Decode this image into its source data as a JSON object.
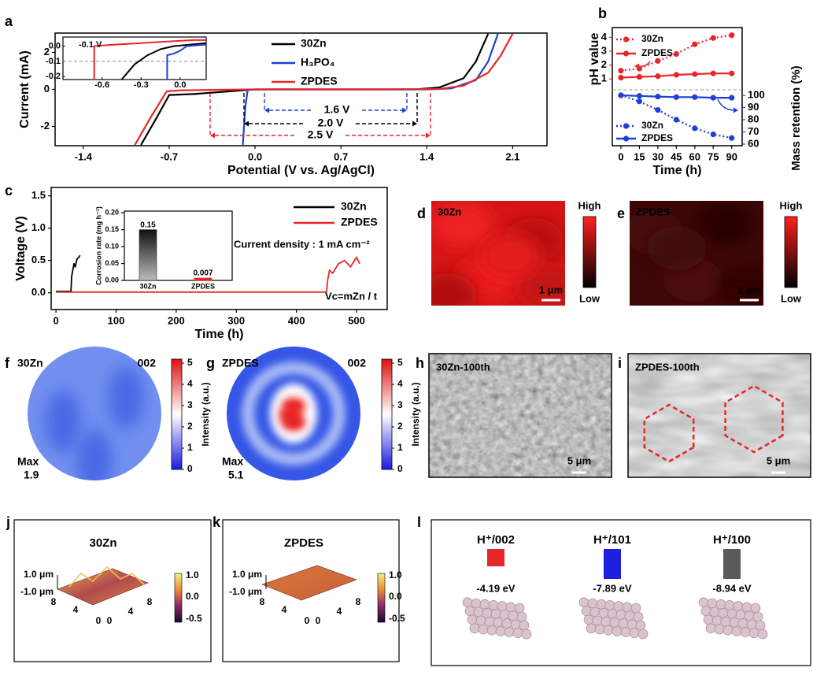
{
  "chart_data": [
    {
      "type": "line",
      "label": "a",
      "xlabel": "Potential (V vs. Ag/AgCl)",
      "ylabel": "Current (mA)",
      "xlim": [
        -1.63,
        2.38
      ],
      "ylim": [
        -3.04,
        3.04
      ],
      "xticks": [
        -1.4,
        -0.7,
        {
          "value": 0,
          "label": "0.0"
        },
        0.7,
        1.4,
        2.1
      ],
      "yticks": [
        -2,
        0,
        2
      ],
      "series": [
        {
          "name": "30Zn",
          "color": "#000000",
          "x": [
            -0.93,
            -0.8,
            -0.7,
            -0.5,
            -0.3,
            0,
            0.5,
            1.0,
            1.3,
            1.5,
            1.7,
            1.8,
            1.9
          ],
          "values": [
            -3,
            -1.5,
            -0.3,
            -0.25,
            -0.15,
            0,
            0,
            0,
            0,
            0.1,
            0.6,
            1.5,
            3
          ]
        },
        {
          "name": "H₃PO₄",
          "color": "#1f3fd9",
          "x": [
            -0.1,
            -0.08,
            -0.06,
            0.1,
            0.5,
            1.0,
            1.4,
            1.6,
            1.8,
            1.9,
            1.98
          ],
          "values": [
            -3,
            -1,
            -0.02,
            0,
            0,
            0,
            0,
            0.05,
            0.5,
            1.5,
            3
          ]
        },
        {
          "name": "ZPDES",
          "color": "#e8262a",
          "x": [
            -0.98,
            -0.85,
            -0.72,
            -0.6,
            -0.3,
            0,
            0.5,
            1.0,
            1.5,
            1.7,
            1.9,
            2.0,
            2.1
          ],
          "values": [
            -3,
            -1.5,
            -0.1,
            -0.05,
            -0.02,
            0,
            0,
            0,
            0.02,
            0.2,
            0.9,
            1.8,
            3
          ]
        }
      ],
      "annotations": [
        {
          "text": "1.6 V",
          "color": "#1f3fd9"
        },
        {
          "text": "2.0 V",
          "color": "#000000"
        },
        {
          "text": "2.5 V",
          "color": "#e8262a"
        }
      ],
      "inset": {
        "xlim": [
          -0.9,
          0.2
        ],
        "ylim": [
          -0.22,
          0.06
        ],
        "xticks": [
          -0.6,
          -0.3,
          {
            "value": 0,
            "label": "0.0"
          }
        ],
        "yticks": [
          {
            "value": 0,
            "label": "0.0"
          },
          -0.1,
          -0.2
        ],
        "annotation": "-0.1 V",
        "series": [
          {
            "color": "#000000",
            "x": [
              -0.45,
              -0.35,
              -0.25,
              -0.15,
              -0.05,
              0.2
            ],
            "values": [
              -0.22,
              -0.12,
              -0.06,
              -0.02,
              0,
              0.02
            ]
          },
          {
            "color": "#1f3fd9",
            "x": [
              -0.1,
              -0.1,
              -0.05,
              0,
              0.05,
              0.2
            ],
            "values": [
              -0.22,
              -0.06,
              -0.05,
              -0.03,
              0,
              0.01
            ]
          },
          {
            "color": "#e8262a",
            "x": [
              -0.66,
              -0.66,
              -0.5,
              -0.3,
              -0.1,
              0.1,
              0.2
            ],
            "values": [
              -0.22,
              0,
              0.01,
              0.02,
              0.03,
              0.04,
              0.04
            ]
          }
        ]
      }
    },
    {
      "type": "line",
      "label": "b",
      "xlabel": "Time (h)",
      "ylabel": "pH value",
      "y2label": "Mass retention (%)",
      "x": [
        0,
        15,
        30,
        45,
        60,
        75,
        90
      ],
      "xlim": [
        -7,
        98.5
      ],
      "xticks": [
        0,
        15,
        30,
        45,
        60,
        75,
        90
      ],
      "ylim": [
        -3.8,
        4.7
      ],
      "yticks": [
        1,
        2,
        3,
        4
      ],
      "y2lim": [
        58.7,
        155.5
      ],
      "y2ticks": [
        60,
        70,
        80,
        90,
        100
      ],
      "series": [
        {
          "name": "30Zn",
          "color": "#e8262a",
          "style": "dotted",
          "values": [
            1.6,
            1.75,
            2.3,
            2.8,
            3.5,
            3.95,
            4.15
          ]
        },
        {
          "name": "ZPDES",
          "color": "#e8262a",
          "style": "solid",
          "values": [
            1.1,
            1.15,
            1.2,
            1.3,
            1.35,
            1.4,
            1.4
          ]
        },
        {
          "name": "30Zn",
          "color": "#1f3fd9",
          "style": "dotted",
          "axis": "y2",
          "values": [
            100,
            95,
            88,
            80,
            73,
            68,
            65
          ]
        },
        {
          "name": "ZPDES",
          "color": "#1f3fd9",
          "style": "solid",
          "axis": "y2",
          "values": [
            100,
            99.5,
            99,
            98.5,
            98.5,
            98,
            98
          ]
        }
      ]
    },
    {
      "type": "line",
      "label": "c",
      "xlabel": "Time (h)",
      "ylabel": "Voltage (V)",
      "xlim": [
        -8,
        551
      ],
      "ylim": [
        -0.26,
        1.63
      ],
      "xticks": [
        0,
        100,
        200,
        300,
        400,
        500
      ],
      "yticks": [
        {
          "value": 0,
          "label": "0.0"
        },
        0.5,
        {
          "value": 1,
          "label": "1.0"
        },
        1.5
      ],
      "series": [
        {
          "name": "30Zn",
          "color": "#000000",
          "x": [
            0,
            10,
            20,
            25,
            26,
            28,
            30,
            32,
            35,
            38,
            40
          ],
          "values": [
            0.02,
            0.02,
            0.02,
            0.02,
            0.25,
            0.35,
            0.45,
            0.4,
            0.52,
            0.55,
            0.58
          ]
        },
        {
          "name": "ZPDES",
          "color": "#e8262a",
          "x": [
            0,
            100,
            200,
            300,
            400,
            450,
            452,
            455,
            460,
            470,
            480,
            490,
            500,
            505
          ],
          "values": [
            0.01,
            0.01,
            0.01,
            0.01,
            0.01,
            0.01,
            0.2,
            0.35,
            0.3,
            0.45,
            0.5,
            0.4,
            0.55,
            0.45
          ]
        }
      ],
      "annotations": [
        "Current density : 1 mA cm⁻²",
        "Vc=mZn / t"
      ],
      "inset": {
        "type": "bar",
        "ylabel": "Corrosion rate (mg h⁻¹)",
        "categories": [
          "30Zn",
          "ZPDES"
        ],
        "values": [
          0.15,
          0.007
        ],
        "colors": [
          "#2a2a2a",
          "#e8262a"
        ],
        "ylim": [
          0,
          0.205
        ],
        "yticks": [
          {
            "value": 0,
            "label": "0.00"
          },
          0.05,
          {
            "value": 0.1,
            "label": "0.10"
          },
          0.15,
          {
            "value": 0.2,
            "label": "0.20"
          }
        ]
      }
    }
  ],
  "panels": {
    "d": {
      "label": "d",
      "title": "30Zn",
      "high": "High",
      "low": "Low",
      "scale": "1 μm"
    },
    "e": {
      "label": "e",
      "title": "ZPDES",
      "high": "High",
      "low": "Low",
      "scale": "1 μm"
    },
    "f": {
      "label": "f",
      "title": "30Zn",
      "plane": "002",
      "max_label": "Max",
      "max": "1.9",
      "colorbar_label": "Intensity (a.u.)",
      "colorbar_ticks": [
        "0",
        "1",
        "2",
        "3",
        "4",
        "5"
      ]
    },
    "g": {
      "label": "g",
      "title": "ZPDES",
      "plane": "002",
      "max_label": "Max",
      "max": "5.1",
      "colorbar_label": "Intensity (a.u.)",
      "colorbar_ticks": [
        "0",
        "1",
        "2",
        "3",
        "4",
        "5"
      ]
    },
    "h": {
      "label": "h",
      "title": "30Zn-100th",
      "scale": "5 μm"
    },
    "i": {
      "label": "i",
      "title": "ZPDES-100th",
      "scale": "5 μm"
    },
    "j": {
      "label": "j",
      "title": "30Zn",
      "z_top": "1.0 μm",
      "z_bottom": "-1.0 μm",
      "axis_ticks": [
        "8",
        "4",
        "0",
        "0",
        "4",
        "8"
      ],
      "colorbar_ticks": [
        "1.0",
        "0.0",
        "-0.5"
      ]
    },
    "k": {
      "label": "k",
      "title": "ZPDES",
      "z_top": "1.0 μm",
      "z_bottom": "-1.0 μm",
      "axis_ticks": [
        "8",
        "4",
        "0",
        "0",
        "4",
        "8"
      ],
      "colorbar_ticks": [
        "1.0",
        "0.0",
        "-0.5"
      ]
    },
    "l": {
      "label": "l",
      "items": [
        {
          "label": "H⁺/002",
          "energy": "-4.19 eV",
          "color": "#e8262a"
        },
        {
          "label": "H⁺/101",
          "energy": "-7.89 eV",
          "color": "#1f1fe0"
        },
        {
          "label": "H⁺/100",
          "energy": "-8.94 eV",
          "color": "#5a5a5a"
        }
      ]
    }
  }
}
